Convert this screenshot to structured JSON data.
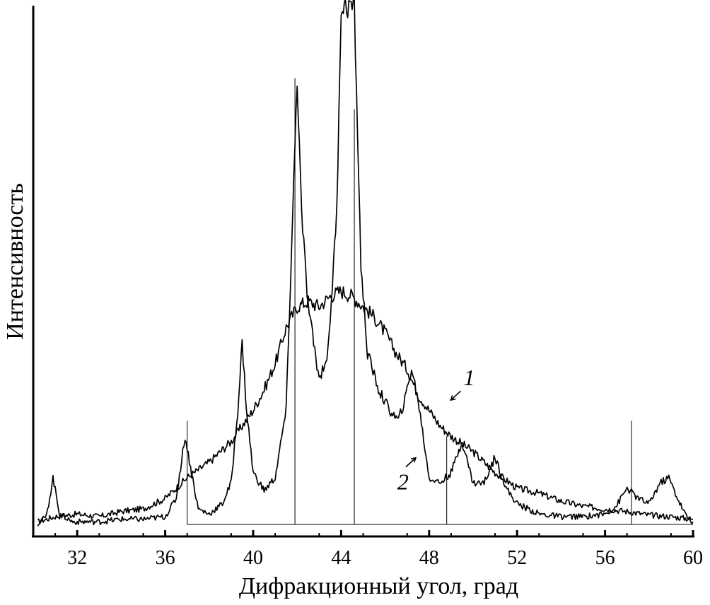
{
  "chart_data": {
    "type": "line",
    "title": "",
    "xlabel": "Дифракционный угол, град",
    "ylabel": "Интенсивность",
    "xlim": [
      30,
      60
    ],
    "ylim": [
      0,
      100
    ],
    "x_ticks": [
      32,
      36,
      40,
      44,
      48,
      52,
      56,
      60
    ],
    "grid": false,
    "legend": "none",
    "series": [
      {
        "name": "1",
        "points": [
          [
            30.2,
            0.5
          ],
          [
            31.0,
            1.5
          ],
          [
            32.0,
            2.0
          ],
          [
            33.0,
            1.5
          ],
          [
            34.0,
            2.5
          ],
          [
            35.0,
            3.0
          ],
          [
            36.0,
            5.0
          ],
          [
            37.0,
            9.0
          ],
          [
            38.0,
            12.0
          ],
          [
            39.0,
            16.0
          ],
          [
            40.0,
            22.0
          ],
          [
            40.5,
            26.0
          ],
          [
            41.0,
            31.0
          ],
          [
            41.5,
            38.0
          ],
          [
            42.0,
            42.0
          ],
          [
            42.5,
            43.0
          ],
          [
            43.0,
            42.0
          ],
          [
            43.5,
            44.0
          ],
          [
            44.0,
            45.0
          ],
          [
            44.5,
            44.0
          ],
          [
            45.0,
            42.0
          ],
          [
            45.5,
            40.0
          ],
          [
            46.0,
            37.0
          ],
          [
            46.5,
            33.0
          ],
          [
            47.0,
            30.0
          ],
          [
            47.5,
            25.0
          ],
          [
            48.0,
            22.0
          ],
          [
            48.5,
            19.0
          ],
          [
            49.0,
            17.0
          ],
          [
            50.0,
            14.0
          ],
          [
            51.0,
            10.0
          ],
          [
            52.0,
            7.0
          ],
          [
            53.0,
            6.0
          ],
          [
            54.0,
            4.5
          ],
          [
            55.0,
            3.5
          ],
          [
            56.0,
            3.0
          ],
          [
            57.0,
            2.5
          ],
          [
            58.0,
            1.8
          ],
          [
            59.0,
            1.5
          ],
          [
            60.0,
            1.0
          ]
        ]
      },
      {
        "name": "2",
        "points": [
          [
            30.2,
            0.2
          ],
          [
            30.6,
            1.5
          ],
          [
            30.9,
            9.0
          ],
          [
            31.2,
            2.0
          ],
          [
            31.8,
            0.5
          ],
          [
            33.0,
            0.5
          ],
          [
            34.0,
            1.0
          ],
          [
            35.0,
            1.0
          ],
          [
            36.0,
            1.5
          ],
          [
            36.5,
            5.0
          ],
          [
            36.9,
            17.0
          ],
          [
            37.2,
            10.0
          ],
          [
            37.5,
            3.0
          ],
          [
            38.0,
            2.0
          ],
          [
            38.6,
            4.0
          ],
          [
            39.0,
            8.0
          ],
          [
            39.3,
            22.0
          ],
          [
            39.5,
            35.0
          ],
          [
            39.7,
            22.0
          ],
          [
            40.0,
            10.0
          ],
          [
            40.5,
            6.5
          ],
          [
            41.0,
            9.0
          ],
          [
            41.5,
            22.0
          ],
          [
            41.8,
            60.0
          ],
          [
            42.0,
            86.0
          ],
          [
            42.2,
            60.0
          ],
          [
            42.5,
            42.0
          ],
          [
            43.0,
            28.0
          ],
          [
            43.4,
            33.0
          ],
          [
            43.8,
            60.0
          ],
          [
            44.0,
            100.0
          ],
          [
            44.6,
            100.0
          ],
          [
            44.9,
            50.0
          ],
          [
            45.2,
            33.0
          ],
          [
            45.7,
            26.0
          ],
          [
            46.2,
            22.0
          ],
          [
            46.6,
            20.0
          ],
          [
            46.9,
            24.0
          ],
          [
            47.2,
            30.0
          ],
          [
            47.5,
            24.0
          ],
          [
            48.0,
            9.0
          ],
          [
            48.5,
            8.0
          ],
          [
            49.0,
            10.0
          ],
          [
            49.5,
            16.0
          ],
          [
            50.0,
            8.0
          ],
          [
            50.5,
            8.0
          ],
          [
            51.0,
            13.0
          ],
          [
            51.5,
            7.0
          ],
          [
            52.0,
            4.0
          ],
          [
            53.0,
            2.0
          ],
          [
            54.0,
            1.5
          ],
          [
            55.0,
            1.5
          ],
          [
            56.0,
            2.0
          ],
          [
            56.5,
            3.5
          ],
          [
            57.0,
            7.0
          ],
          [
            57.5,
            5.0
          ],
          [
            58.0,
            4.0
          ],
          [
            58.5,
            8.0
          ],
          [
            58.9,
            9.0
          ],
          [
            59.3,
            5.0
          ],
          [
            59.7,
            1.5
          ],
          [
            60.0,
            0.5
          ]
        ]
      }
    ],
    "reference_lines": [
      {
        "x": 37.0,
        "height": 20
      },
      {
        "x": 41.9,
        "height": 86
      },
      {
        "x": 44.6,
        "height": 80
      },
      {
        "x": 48.8,
        "height": 17
      },
      {
        "x": 57.2,
        "height": 20
      }
    ],
    "reference_baseline": 0,
    "reference_x_range": [
      37.0,
      60.0
    ],
    "annotations": [
      {
        "text": "1",
        "x": 49.5,
        "y": 26
      },
      {
        "text": "2",
        "x": 46.3,
        "y": 7
      }
    ]
  }
}
